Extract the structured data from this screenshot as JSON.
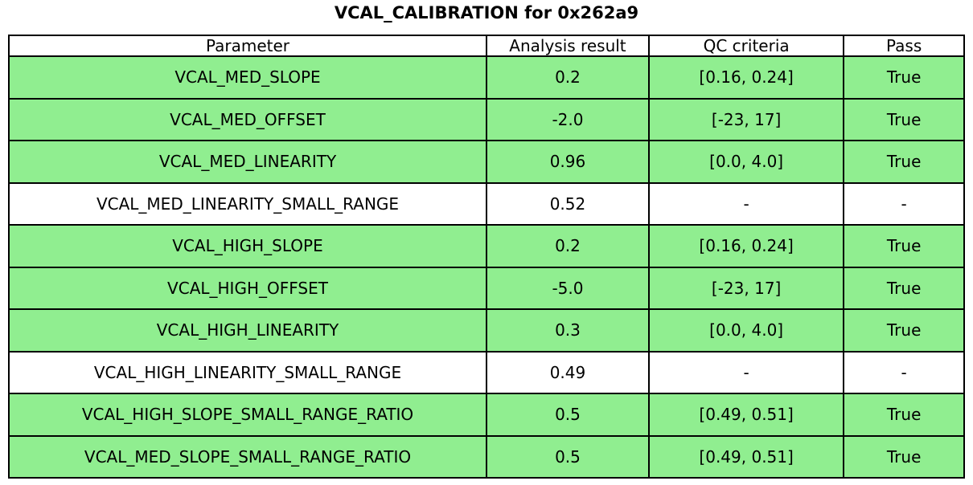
{
  "colors": {
    "pass_row_background": "#90EE90",
    "neutral_row_background": "#ffffff",
    "border": "#000000",
    "text": "#000000"
  },
  "chart_data": {
    "type": "table",
    "title": "VCAL_CALIBRATION for 0x262a9",
    "columns": [
      "Parameter",
      "Analysis result",
      "QC criteria",
      "Pass"
    ],
    "rows": [
      {
        "cells": [
          "VCAL_MED_SLOPE",
          "0.2",
          "[0.16, 0.24]",
          "True"
        ],
        "highlight": true
      },
      {
        "cells": [
          "VCAL_MED_OFFSET",
          "-2.0",
          "[-23, 17]",
          "True"
        ],
        "highlight": true
      },
      {
        "cells": [
          "VCAL_MED_LINEARITY",
          "0.96",
          "[0.0, 4.0]",
          "True"
        ],
        "highlight": true
      },
      {
        "cells": [
          "VCAL_MED_LINEARITY_SMALL_RANGE",
          "0.52",
          "-",
          "-"
        ],
        "highlight": false
      },
      {
        "cells": [
          "VCAL_HIGH_SLOPE",
          "0.2",
          "[0.16, 0.24]",
          "True"
        ],
        "highlight": true
      },
      {
        "cells": [
          "VCAL_HIGH_OFFSET",
          "-5.0",
          "[-23, 17]",
          "True"
        ],
        "highlight": true
      },
      {
        "cells": [
          "VCAL_HIGH_LINEARITY",
          "0.3",
          "[0.0, 4.0]",
          "True"
        ],
        "highlight": true
      },
      {
        "cells": [
          "VCAL_HIGH_LINEARITY_SMALL_RANGE",
          "0.49",
          "-",
          "-"
        ],
        "highlight": false
      },
      {
        "cells": [
          "VCAL_HIGH_SLOPE_SMALL_RANGE_RATIO",
          "0.5",
          "[0.49, 0.51]",
          "True"
        ],
        "highlight": true
      },
      {
        "cells": [
          "VCAL_MED_SLOPE_SMALL_RANGE_RATIO",
          "0.5",
          "[0.49, 0.51]",
          "True"
        ],
        "highlight": true
      }
    ],
    "layout": {
      "legend": "none",
      "grid": "table-borders",
      "highlight_meaning": "row passes QC criteria"
    }
  }
}
